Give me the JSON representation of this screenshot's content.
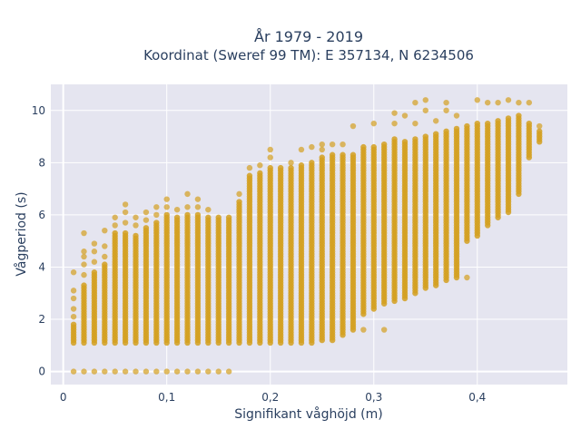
{
  "chart_data": {
    "type": "scatter",
    "title_line1": "År 1979 - 2019",
    "title_line2": "Koordinat (Sweref 99 TM): E 357134, N 6234506",
    "xlabel": "Signifikant våghöjd (m)",
    "ylabel": "Vågperiod (s)",
    "xlim": [
      -0.012,
      0.487
    ],
    "ylim": [
      -0.5,
      11
    ],
    "x_ticks": [
      0,
      0.1,
      0.2,
      0.3,
      0.4
    ],
    "x_tick_labels": [
      "0",
      "0,1",
      "0,2",
      "0,3",
      "0,4"
    ],
    "y_ticks": [
      0,
      2,
      4,
      6,
      8,
      10
    ],
    "y_tick_labels": [
      "0",
      "2",
      "4",
      "6",
      "8",
      "10"
    ],
    "grid": true,
    "plot_bg": "#e5e5f0",
    "grid_color": "#ffffff",
    "marker_color": "#d4a020",
    "x_step": 0.01,
    "columns": [
      {
        "x": 0.01,
        "y_min": 1.1,
        "y_max": 1.8,
        "outliers": [
          0,
          2.1,
          2.4,
          2.8,
          3.1,
          3.8
        ]
      },
      {
        "x": 0.02,
        "y_min": 1.1,
        "y_max": 3.3,
        "outliers": [
          0,
          3.7,
          4.1,
          4.4,
          4.6,
          5.3
        ]
      },
      {
        "x": 0.03,
        "y_min": 1.1,
        "y_max": 3.8,
        "outliers": [
          0,
          4.2,
          4.6,
          4.9
        ]
      },
      {
        "x": 0.04,
        "y_min": 1.1,
        "y_max": 4.1,
        "outliers": [
          0,
          4.4,
          4.8,
          5.4
        ]
      },
      {
        "x": 0.05,
        "y_min": 1.1,
        "y_max": 5.3,
        "outliers": [
          0,
          5.6,
          5.9
        ]
      },
      {
        "x": 0.06,
        "y_min": 1.1,
        "y_max": 5.3,
        "outliers": [
          0,
          5.7,
          6.1,
          6.4
        ]
      },
      {
        "x": 0.07,
        "y_min": 1.1,
        "y_max": 5.2,
        "outliers": [
          0,
          5.6,
          5.9
        ]
      },
      {
        "x": 0.08,
        "y_min": 1.1,
        "y_max": 5.5,
        "outliers": [
          0,
          5.8,
          6.1
        ]
      },
      {
        "x": 0.09,
        "y_min": 1.1,
        "y_max": 5.7,
        "outliers": [
          0,
          6.0,
          6.3
        ]
      },
      {
        "x": 0.1,
        "y_min": 1.1,
        "y_max": 6.0,
        "outliers": [
          0,
          6.3,
          6.6
        ]
      },
      {
        "x": 0.11,
        "y_min": 1.1,
        "y_max": 5.9,
        "outliers": [
          0,
          6.2
        ]
      },
      {
        "x": 0.12,
        "y_min": 1.1,
        "y_max": 6.0,
        "outliers": [
          0,
          6.3,
          6.8
        ]
      },
      {
        "x": 0.13,
        "y_min": 1.1,
        "y_max": 6.0,
        "outliers": [
          0,
          6.3,
          6.6
        ]
      },
      {
        "x": 0.14,
        "y_min": 1.1,
        "y_max": 5.9,
        "outliers": [
          0,
          6.2
        ]
      },
      {
        "x": 0.15,
        "y_min": 1.1,
        "y_max": 5.9,
        "outliers": [
          0
        ]
      },
      {
        "x": 0.16,
        "y_min": 1.1,
        "y_max": 5.9,
        "outliers": [
          0
        ]
      },
      {
        "x": 0.17,
        "y_min": 1.1,
        "y_max": 6.5,
        "outliers": [
          6.8
        ]
      },
      {
        "x": 0.18,
        "y_min": 1.1,
        "y_max": 7.5,
        "outliers": [
          7.8
        ]
      },
      {
        "x": 0.19,
        "y_min": 1.1,
        "y_max": 7.6,
        "outliers": [
          7.9
        ]
      },
      {
        "x": 0.2,
        "y_min": 1.1,
        "y_max": 7.8,
        "outliers": [
          8.2,
          8.5
        ]
      },
      {
        "x": 0.21,
        "y_min": 1.1,
        "y_max": 7.8,
        "outliers": []
      },
      {
        "x": 0.22,
        "y_min": 1.1,
        "y_max": 7.8,
        "outliers": [
          8.0
        ]
      },
      {
        "x": 0.23,
        "y_min": 1.1,
        "y_max": 7.9,
        "outliers": [
          8.5
        ]
      },
      {
        "x": 0.24,
        "y_min": 1.1,
        "y_max": 8.0,
        "outliers": [
          8.6
        ]
      },
      {
        "x": 0.25,
        "y_min": 1.2,
        "y_max": 8.2,
        "outliers": [
          8.5,
          8.7
        ]
      },
      {
        "x": 0.26,
        "y_min": 1.2,
        "y_max": 8.3,
        "outliers": [
          8.7
        ]
      },
      {
        "x": 0.27,
        "y_min": 1.4,
        "y_max": 8.3,
        "outliers": [
          8.7
        ]
      },
      {
        "x": 0.28,
        "y_min": 1.6,
        "y_max": 8.3,
        "outliers": [
          9.4
        ]
      },
      {
        "x": 0.29,
        "y_min": 2.2,
        "y_max": 8.6,
        "outliers": [
          1.6
        ]
      },
      {
        "x": 0.3,
        "y_min": 2.4,
        "y_max": 8.6,
        "outliers": [
          9.5
        ]
      },
      {
        "x": 0.31,
        "y_min": 2.6,
        "y_max": 8.7,
        "outliers": [
          1.6
        ]
      },
      {
        "x": 0.32,
        "y_min": 2.7,
        "y_max": 8.9,
        "outliers": [
          9.5,
          9.9
        ]
      },
      {
        "x": 0.33,
        "y_min": 2.8,
        "y_max": 8.8,
        "outliers": [
          9.8
        ]
      },
      {
        "x": 0.34,
        "y_min": 3.0,
        "y_max": 8.9,
        "outliers": [
          9.5,
          10.3
        ]
      },
      {
        "x": 0.35,
        "y_min": 3.2,
        "y_max": 9.0,
        "outliers": [
          10.0,
          10.4
        ]
      },
      {
        "x": 0.36,
        "y_min": 3.3,
        "y_max": 9.1,
        "outliers": [
          9.6
        ]
      },
      {
        "x": 0.37,
        "y_min": 3.5,
        "y_max": 9.2,
        "outliers": [
          10.0,
          10.3
        ]
      },
      {
        "x": 0.38,
        "y_min": 3.6,
        "y_max": 9.3,
        "outliers": [
          9.8
        ]
      },
      {
        "x": 0.39,
        "y_min": 5.0,
        "y_max": 9.4,
        "outliers": [
          3.6
        ]
      },
      {
        "x": 0.4,
        "y_min": 5.2,
        "y_max": 9.5,
        "outliers": [
          10.4
        ]
      },
      {
        "x": 0.41,
        "y_min": 5.6,
        "y_max": 9.5,
        "outliers": [
          10.3
        ]
      },
      {
        "x": 0.42,
        "y_min": 5.9,
        "y_max": 9.6,
        "outliers": [
          10.3
        ]
      },
      {
        "x": 0.43,
        "y_min": 6.1,
        "y_max": 9.7,
        "outliers": [
          10.4
        ]
      },
      {
        "x": 0.44,
        "y_min": 6.8,
        "y_max": 9.8,
        "outliers": [
          10.3
        ]
      },
      {
        "x": 0.45,
        "y_min": 8.2,
        "y_max": 9.5,
        "outliers": [
          10.3
        ]
      },
      {
        "x": 0.46,
        "y_min": 8.8,
        "y_max": 9.2,
        "outliers": [
          9.4
        ]
      }
    ]
  }
}
